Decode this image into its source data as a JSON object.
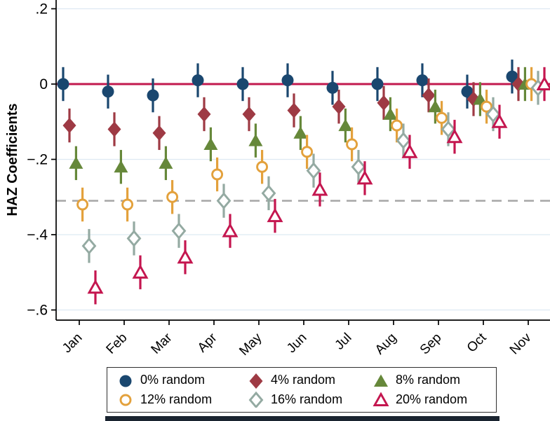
{
  "figure": {
    "background": "#ffffff",
    "bottom_rule_color": "#1a2430",
    "legend_border_color": "#2f2f2f"
  },
  "chart_data": {
    "type": "scatter",
    "subtype": "coefficient-plot-with-error-bars",
    "title": "",
    "xlabel": "",
    "ylabel": "HAZ Coefficients",
    "categories": [
      "Jan",
      "Feb",
      "Mar",
      "Apr",
      "May",
      "Jun",
      "Jul",
      "Aug",
      "Sep",
      "Oct",
      "Nov"
    ],
    "y_ticks": [
      {
        "label": ".2",
        "value": 0.2
      },
      {
        "label": "0",
        "value": 0.0
      },
      {
        "label": "−.2",
        "value": -0.2
      },
      {
        "label": "−.4",
        "value": -0.4
      },
      {
        "label": "−.6",
        "value": -0.6
      }
    ],
    "ylim": [
      -0.63,
      0.22
    ],
    "grid": true,
    "gridline_color": "#dde9f2",
    "axis_color": "#000000",
    "legend_position": "bottom",
    "ref_lines": [
      {
        "style": "solid",
        "value": 0.0,
        "color": "#c2194e",
        "name": "zero-line"
      },
      {
        "style": "dashed",
        "value": -0.31,
        "color": "#a6a6a6",
        "name": "dashed-reference-line"
      }
    ],
    "error_bar_halfwidth": 0.045,
    "series": [
      {
        "name": "0% random",
        "marker": "circle",
        "fill": true,
        "color": "#1a476f",
        "values": [
          0.0,
          -0.02,
          -0.03,
          0.01,
          0.0,
          0.01,
          -0.01,
          0.0,
          0.01,
          -0.02,
          0.02
        ]
      },
      {
        "name": "4% random",
        "marker": "diamond",
        "fill": true,
        "color": "#9e3a44",
        "values": [
          -0.11,
          -0.12,
          -0.13,
          -0.08,
          -0.08,
          -0.07,
          -0.06,
          -0.05,
          -0.03,
          -0.04,
          0.0
        ]
      },
      {
        "name": "8% random",
        "marker": "triangle",
        "fill": true,
        "color": "#66883a",
        "values": [
          -0.21,
          -0.22,
          -0.21,
          -0.16,
          -0.15,
          -0.13,
          -0.11,
          -0.08,
          -0.06,
          -0.04,
          0.0
        ]
      },
      {
        "name": "12% random",
        "marker": "circle",
        "fill": false,
        "color": "#e3a13c",
        "values": [
          -0.32,
          -0.32,
          -0.3,
          -0.24,
          -0.22,
          -0.18,
          -0.16,
          -0.11,
          -0.09,
          -0.06,
          0.0
        ]
      },
      {
        "name": "16% random",
        "marker": "diamond",
        "fill": false,
        "color": "#94aaa2",
        "values": [
          -0.43,
          -0.41,
          -0.39,
          -0.31,
          -0.29,
          -0.23,
          -0.22,
          -0.15,
          -0.12,
          -0.08,
          -0.01
        ]
      },
      {
        "name": "20% random",
        "marker": "triangle",
        "fill": false,
        "color": "#c4164f",
        "values": [
          -0.54,
          -0.5,
          -0.46,
          -0.39,
          -0.35,
          -0.28,
          -0.25,
          -0.18,
          -0.14,
          -0.1,
          0.0
        ]
      }
    ]
  }
}
